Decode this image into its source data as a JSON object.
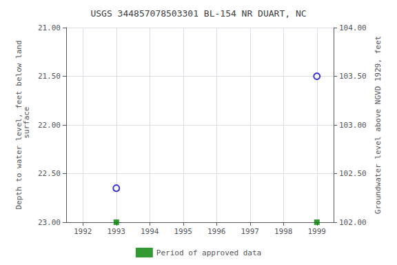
{
  "chart_data": {
    "type": "scatter",
    "title": "USGS 344857078503301 BL-154 NR DUART, NC",
    "x": [
      1993.0,
      1999.0
    ],
    "series": [
      {
        "color": "#0000cc",
        "marker": "open_circle",
        "values": [
          22.65,
          21.5
        ]
      },
      {
        "name": "Period of approved data",
        "color": "#008000",
        "marker": "square",
        "values": [
          23.0,
          23.0
        ]
      }
    ],
    "xlim": [
      1991.5,
      1999.5
    ],
    "xticks": [
      1992,
      1993,
      1994,
      1995,
      1996,
      1997,
      1998,
      1999
    ],
    "ylabel": "Depth to water level, feet below land\n surface",
    "ylim": [
      23.0,
      21.0
    ],
    "yticks": [
      {
        "value": 21.0,
        "label": "21.00"
      },
      {
        "value": 21.5,
        "label": "21.50"
      },
      {
        "value": 22.0,
        "label": "22.00"
      },
      {
        "value": 22.5,
        "label": "22.50"
      },
      {
        "value": 23.0,
        "label": "23.00"
      }
    ],
    "y2label": "Groundwater level above NGVD 1929, feet",
    "y2lim": [
      102.0,
      104.0
    ],
    "y2ticks": [
      {
        "value": 102.0,
        "label": "102.00"
      },
      {
        "value": 102.5,
        "label": "102.50"
      },
      {
        "value": 103.0,
        "label": "103.00"
      },
      {
        "value": 103.5,
        "label": "103.50"
      },
      {
        "value": 104.0,
        "label": "104.00"
      }
    ],
    "grid": true,
    "legend": "bottom"
  }
}
